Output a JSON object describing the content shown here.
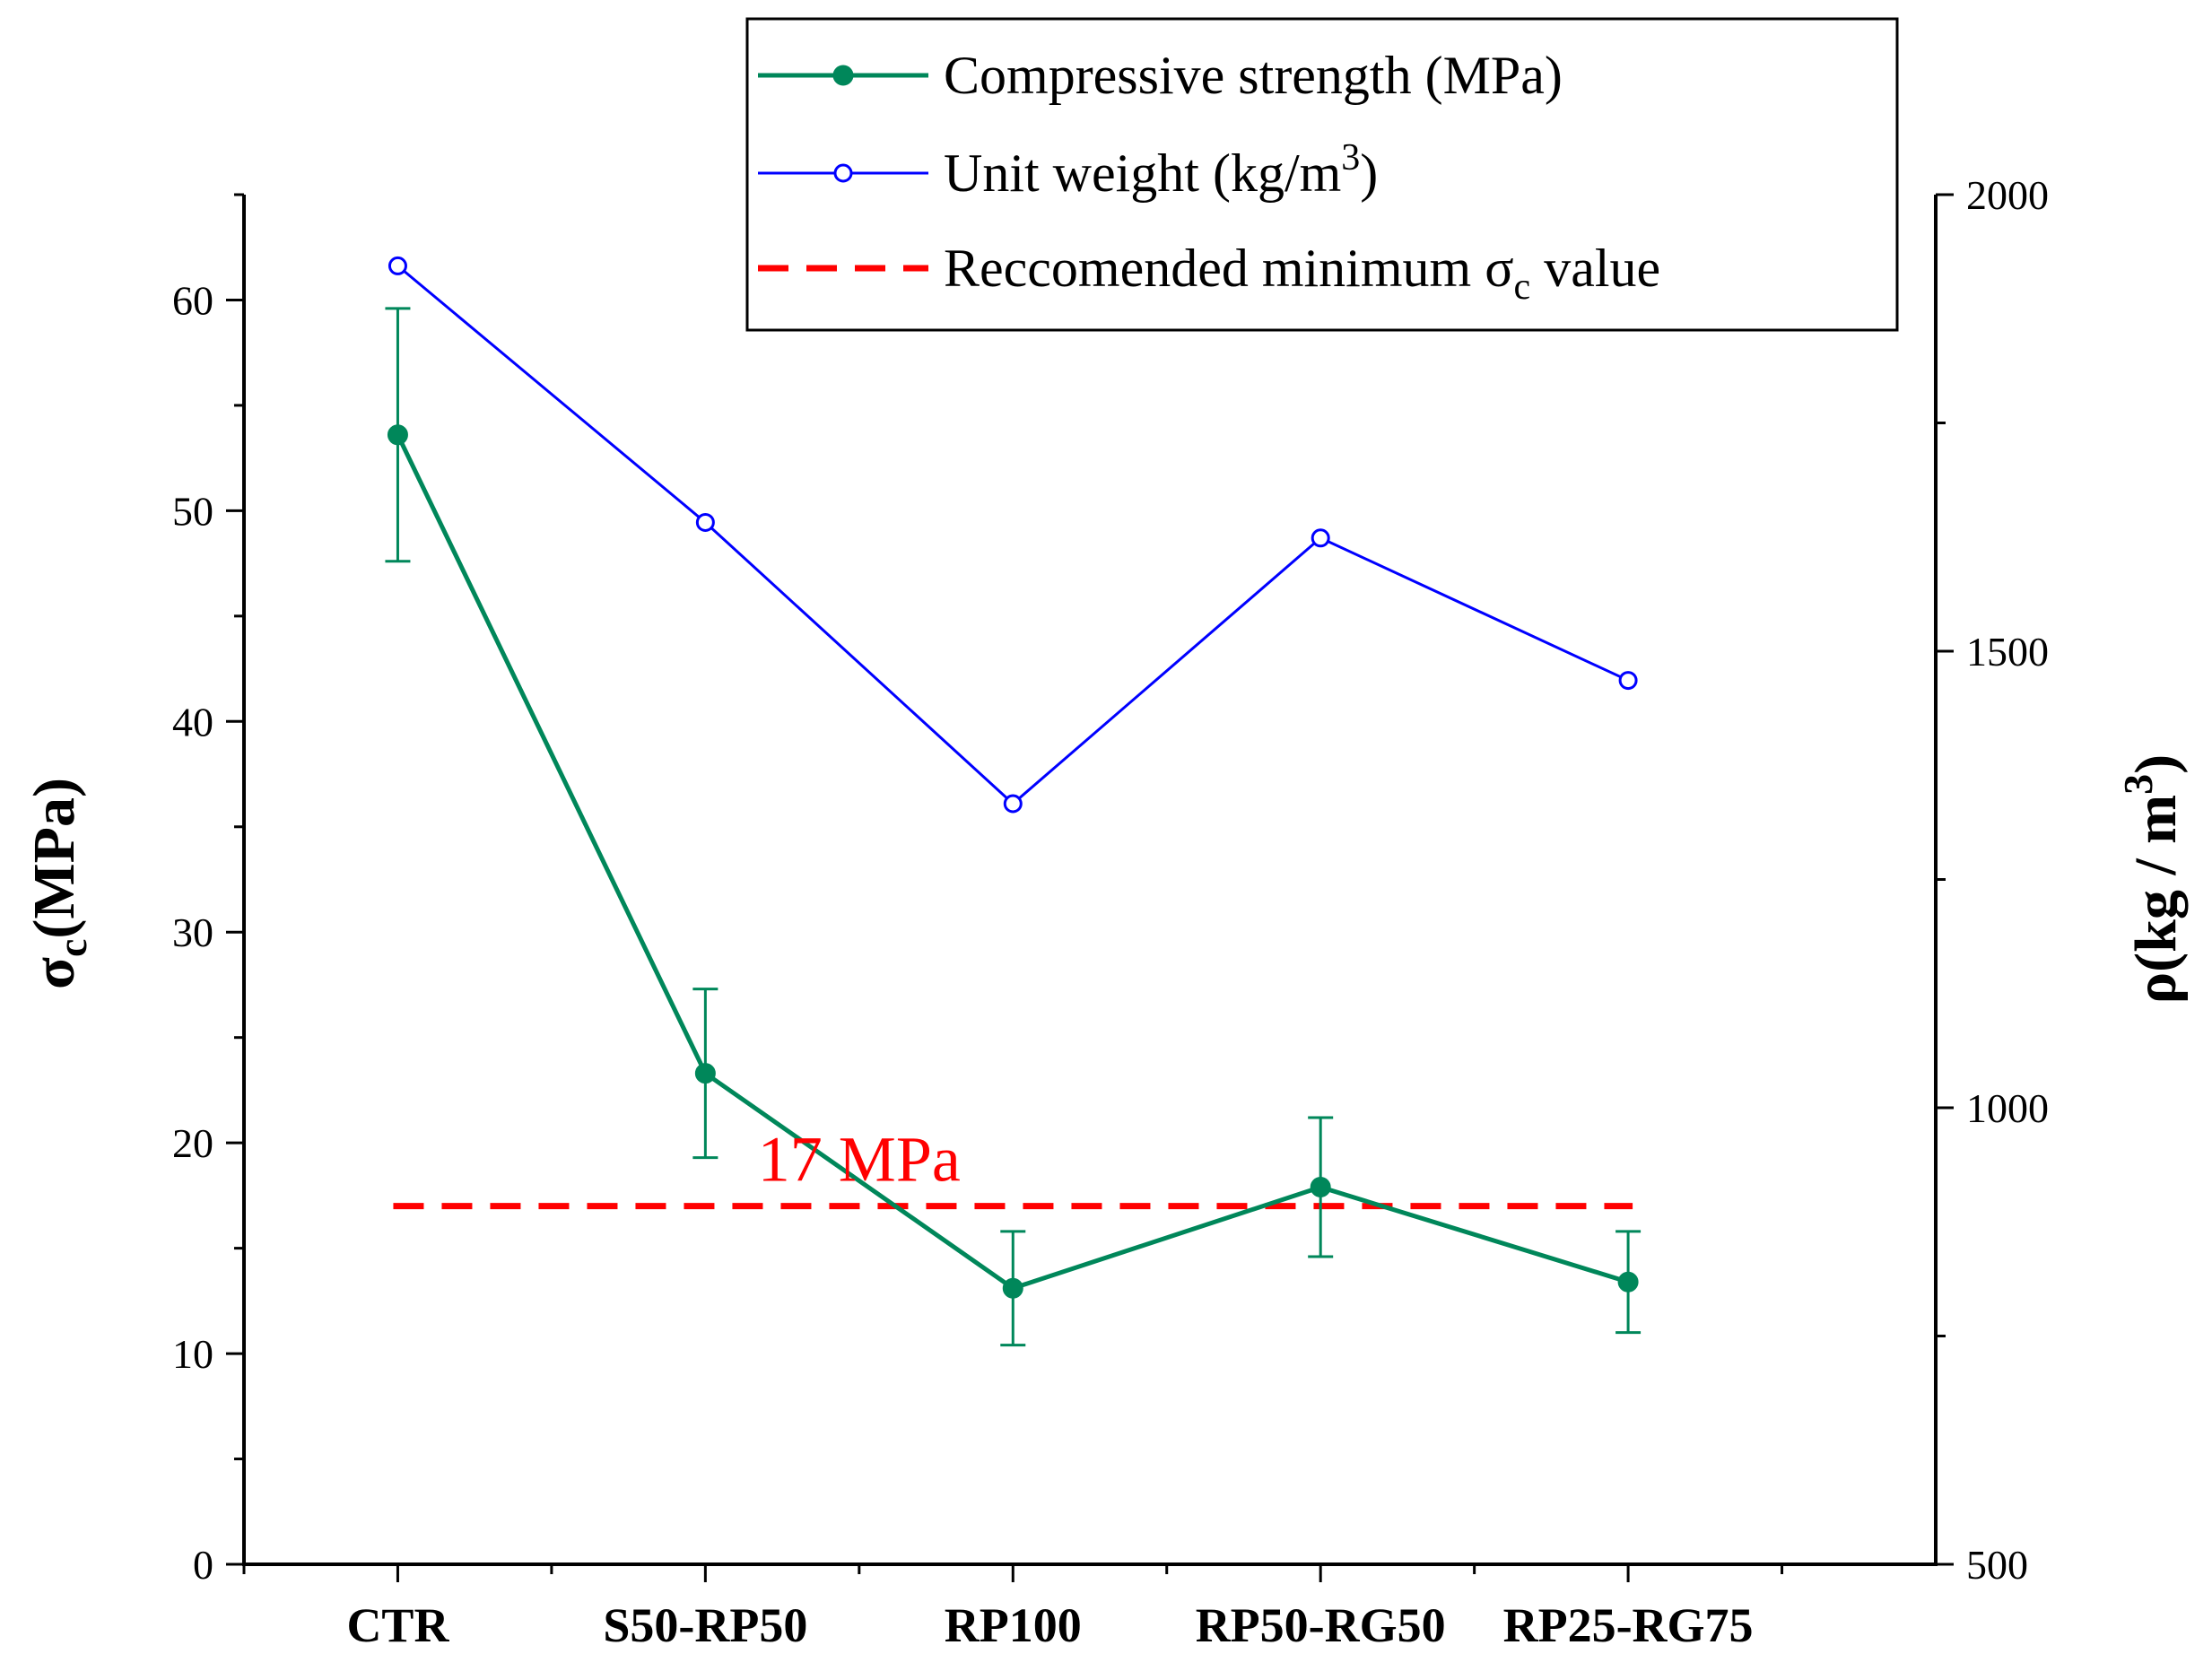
{
  "chart_data": {
    "type": "line",
    "categories": [
      "CTR",
      "S50-RP50",
      "RP100",
      "RP50-RG50",
      "RP25-RG75"
    ],
    "series": [
      {
        "name": "Compressive strength (MPa)",
        "axis": "left",
        "color": "#00875a",
        "marker": "filled-circle",
        "values": [
          53.6,
          23.3,
          13.1,
          17.9,
          13.4
        ],
        "error": [
          6.0,
          4.0,
          2.7,
          3.3,
          2.4
        ]
      },
      {
        "name": "Unit weight (kg/m",
        "name_superscript": "3",
        "name_suffix": ")",
        "axis": "right",
        "color": "#0000ff",
        "marker": "open-circle",
        "values": [
          1922,
          1641,
          1333,
          1624,
          1468
        ]
      }
    ],
    "reference_line": {
      "name": "Reccomended minimum σ",
      "name_subscript": "c",
      "name_suffix": " value",
      "value": 17,
      "axis": "left",
      "color": "#ff0000",
      "style": "dashed",
      "label": "17 MPa"
    },
    "y_left": {
      "label": "σ",
      "label_subscript": "c",
      "label_suffix": "(MPa)",
      "ylim": [
        0,
        65
      ],
      "ticks": [
        0,
        10,
        20,
        30,
        40,
        50,
        60
      ],
      "tick_labels": [
        "0",
        "10",
        "20",
        "30",
        "40",
        "50",
        "60"
      ]
    },
    "y_right": {
      "label": "ρ(kg / m",
      "label_superscript": "3",
      "label_suffix": ")",
      "ylim": [
        500,
        2000
      ],
      "ticks": [
        500,
        1000,
        1500,
        2000
      ],
      "tick_labels": [
        "500",
        "1000",
        "1500",
        "2000"
      ]
    },
    "grid": false,
    "legend_position": "top-right"
  }
}
